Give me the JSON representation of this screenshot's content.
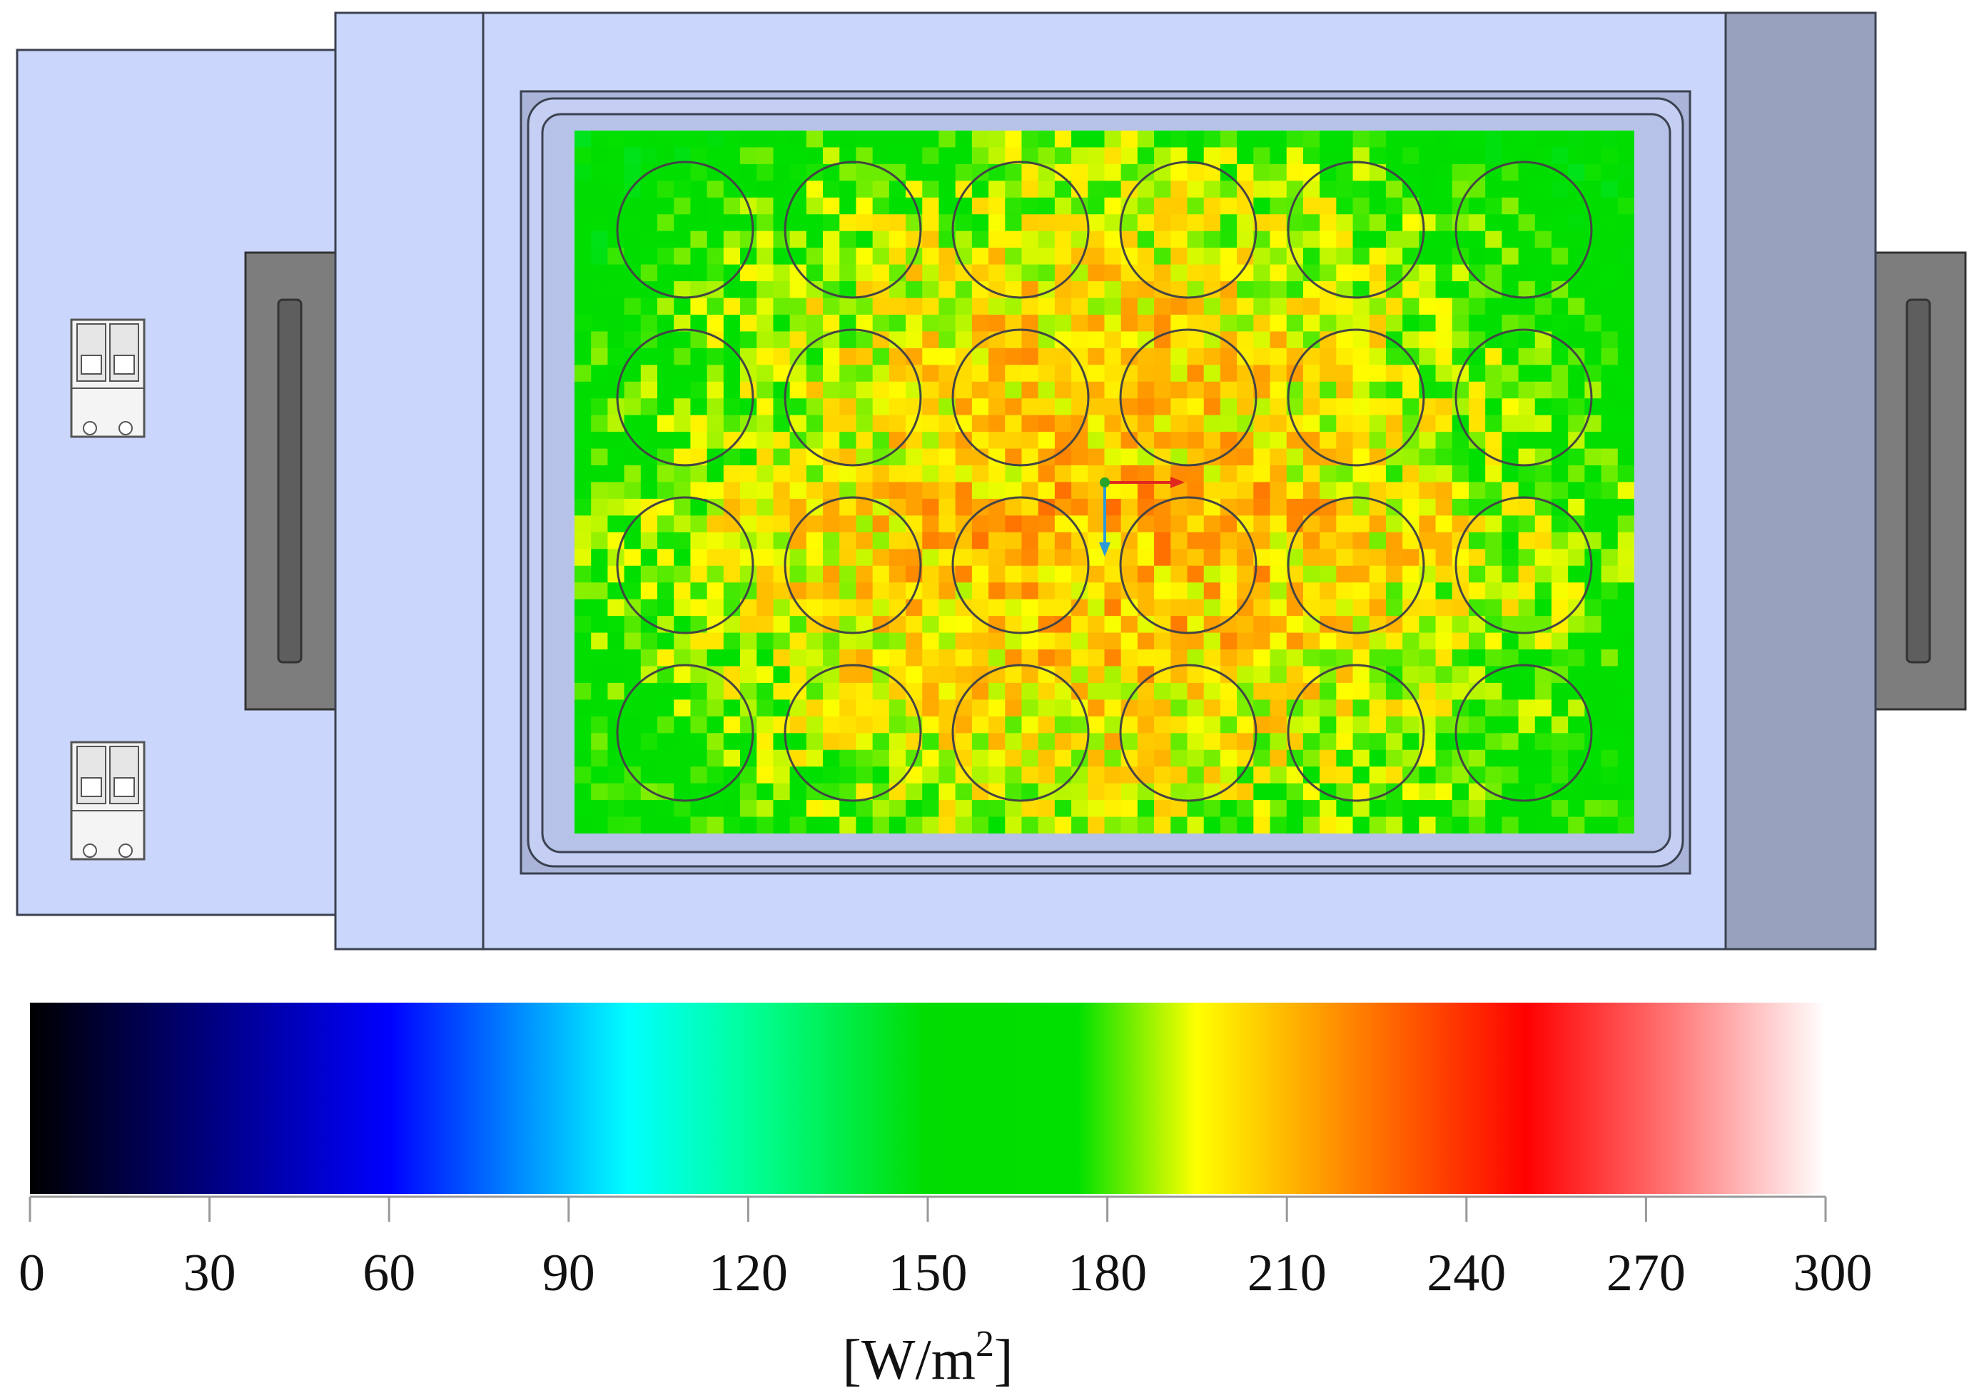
{
  "colors": {
    "frame_fill": "#cad6fb",
    "frame_stroke": "#3c4150",
    "dark_panel": "#98a1bd",
    "handle_fill": "#7b7b7b",
    "well_stroke": "#444444",
    "axis_x": "#e0281e",
    "axis_z": "#2e9bd6",
    "origin": "#29a329"
  },
  "icons": [
    "connector-icon",
    "coordinate-triad-icon"
  ],
  "chart_data": {
    "type": "heatmap",
    "title": "",
    "description_free": true,
    "plate": {
      "rows": 4,
      "columns": 6
    },
    "grid": {
      "rows": 42,
      "columns": 64
    },
    "region_means": {
      "upper_half": {
        "edge": 160,
        "center": 205
      },
      "lower_half": {
        "edge": 170,
        "center": 210
      }
    },
    "colorbar": {
      "min": 0,
      "max": 300,
      "ticks": [
        "0",
        "30",
        "60",
        "90",
        "120",
        "150",
        "180",
        "210",
        "240",
        "270",
        "300"
      ],
      "tick_values": [
        0,
        30,
        60,
        90,
        120,
        150,
        180,
        210,
        240,
        270,
        300
      ],
      "unit_main": "[W/m",
      "unit_sup": "2",
      "unit_close": "]",
      "stops": [
        {
          "value": 0,
          "color": "#000000"
        },
        {
          "value": 60,
          "color": "#0000ff"
        },
        {
          "value": 100,
          "color": "#00ffff"
        },
        {
          "value": 120,
          "color": "#00ff99"
        },
        {
          "value": 150,
          "color": "#00dd00"
        },
        {
          "value": 175,
          "color": "#00e000"
        },
        {
          "value": 195,
          "color": "#ffff00"
        },
        {
          "value": 220,
          "color": "#ff8800"
        },
        {
          "value": 250,
          "color": "#ff0000"
        },
        {
          "value": 270,
          "color": "#ff6060"
        },
        {
          "value": 300,
          "color": "#ffffff"
        }
      ]
    }
  }
}
